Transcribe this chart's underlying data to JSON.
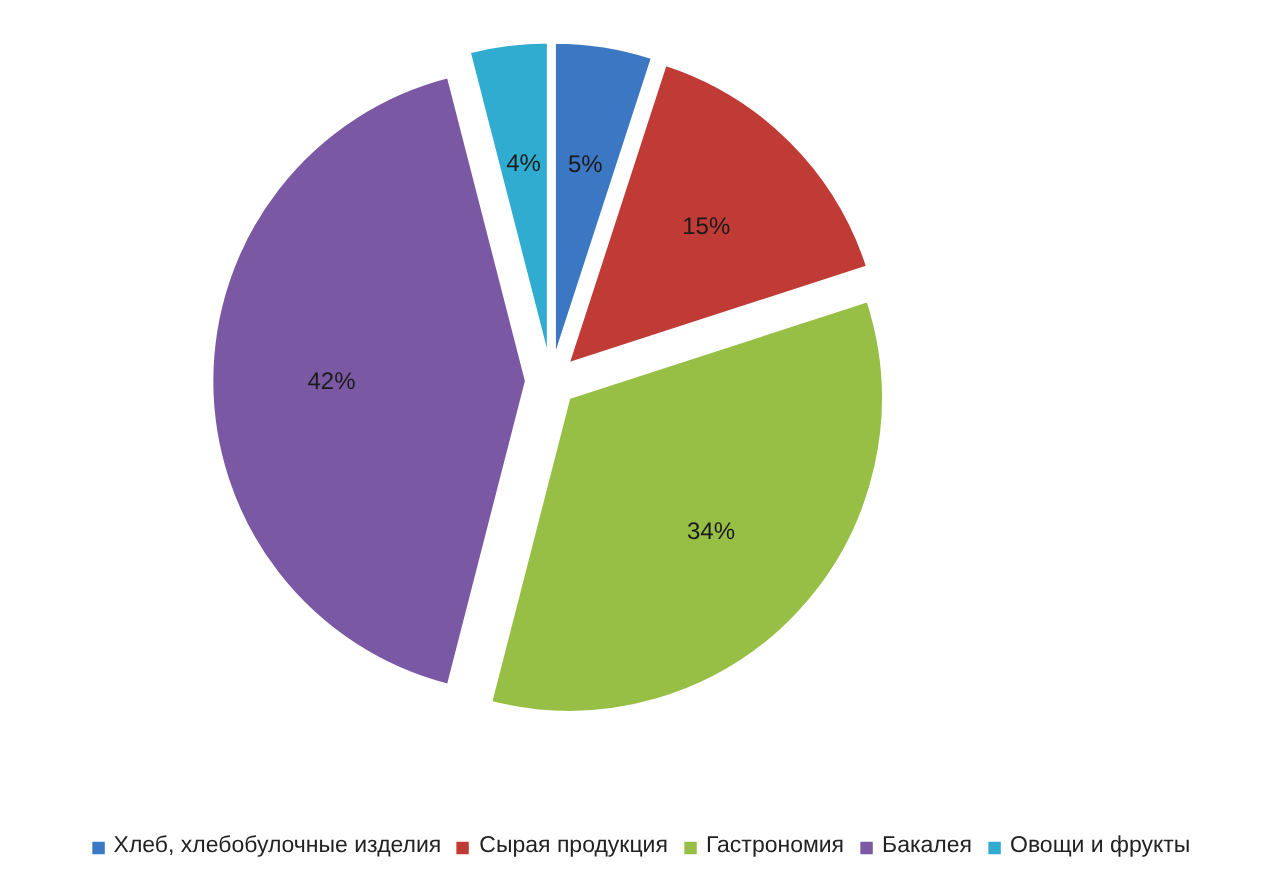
{
  "chart_data": {
    "type": "pie",
    "categories": [
      "Хлеб, хлебобулочные изделия",
      "Сырая продукция",
      "Гастрономия",
      "Бакалея",
      "Овощи и фрукты"
    ],
    "values": [
      5,
      15,
      34,
      42,
      4
    ],
    "colors": [
      "#3c77c3",
      "#c03a36",
      "#97be45",
      "#7b58a4",
      "#30acd0"
    ],
    "value_labels": [
      "5%",
      "15%",
      "34%",
      "42%",
      "4%"
    ],
    "legend": "bottom"
  }
}
